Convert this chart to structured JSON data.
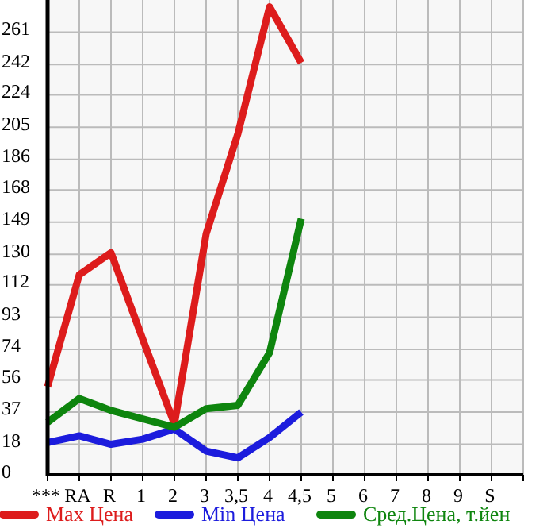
{
  "chart_data": {
    "type": "line",
    "categories": [
      "***",
      "RA",
      "R",
      "1",
      "2",
      "3",
      "3,5",
      "4",
      "4,5",
      "5",
      "6",
      "7",
      "8",
      "9",
      "S"
    ],
    "series": [
      {
        "name": "Max Цена",
        "color": "#dd1c1c",
        "values": [
          52,
          118,
          131,
          80,
          30,
          142,
          201,
          276,
          243,
          null,
          null,
          null,
          null,
          null,
          null
        ]
      },
      {
        "name": "Min Цена",
        "color": "#1c1cdd",
        "values": [
          19,
          23,
          18,
          21,
          27,
          14,
          10,
          22,
          37,
          null,
          null,
          null,
          null,
          null,
          null
        ]
      },
      {
        "name": "Сред.Цена, т.йен",
        "color": "#0e850e",
        "values": [
          31,
          45,
          38,
          33,
          28,
          39,
          41,
          72,
          151,
          null,
          null,
          null,
          null,
          null,
          null
        ]
      }
    ],
    "ylim": [
      0,
      280
    ],
    "yticks": [
      0,
      18,
      37,
      56,
      74,
      93,
      112,
      130,
      149,
      168,
      186,
      205,
      224,
      242,
      261
    ],
    "grid": true,
    "legend": "bottom",
    "marker": "none",
    "line_style": "solid"
  }
}
